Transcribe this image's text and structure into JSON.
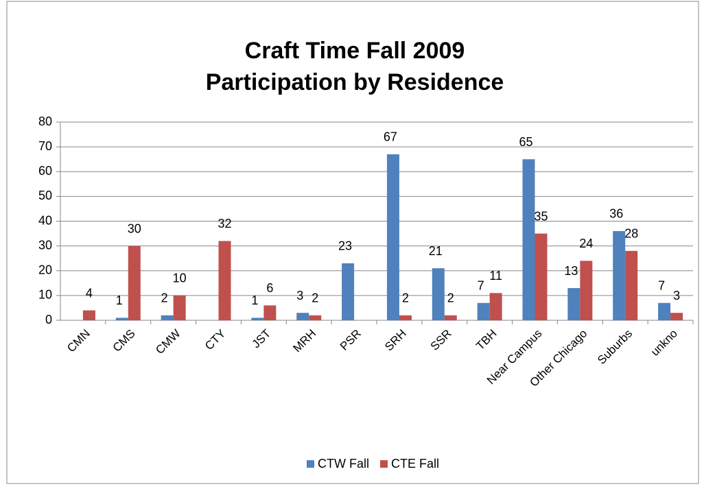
{
  "chart_data": {
    "type": "bar",
    "title": [
      "Craft Time Fall 2009",
      "Participation by Residence"
    ],
    "categories": [
      "CMN",
      "CMS",
      "CMW",
      "CTY",
      "JST",
      "MRH",
      "PSR",
      "SRH",
      "SSR",
      "TBH",
      "Near Campus",
      "Other Chicago",
      "Suburbs",
      "unkno"
    ],
    "series": [
      {
        "name": "CTW Fall",
        "color": "#4f81bd",
        "values": [
          null,
          1,
          2,
          null,
          1,
          3,
          23,
          67,
          21,
          7,
          65,
          13,
          36,
          7
        ]
      },
      {
        "name": "CTE Fall",
        "color": "#c0504d",
        "values": [
          4,
          30,
          10,
          32,
          6,
          2,
          null,
          2,
          2,
          11,
          35,
          24,
          28,
          3
        ]
      }
    ],
    "ylim": [
      0,
      80
    ],
    "yticks": [
      0,
      10,
      20,
      30,
      40,
      50,
      60,
      70,
      80
    ],
    "grid": true,
    "legend": "bottom"
  }
}
